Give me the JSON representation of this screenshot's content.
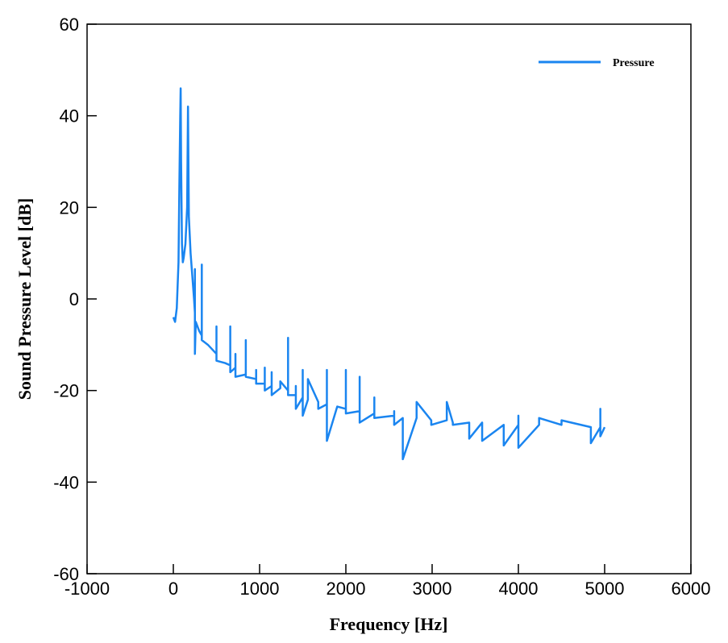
{
  "chart_data": {
    "type": "line",
    "xlabel": "Frequency [Hz]",
    "ylabel": "Sound Pressure Level [dB]",
    "xlim": [
      -1000,
      6000
    ],
    "ylim": [
      -60,
      60
    ],
    "xticks": [
      -1000,
      0,
      1000,
      2000,
      3000,
      4000,
      5000,
      6000
    ],
    "yticks": [
      -60,
      -40,
      -20,
      0,
      20,
      40,
      60
    ],
    "legend": "upper right",
    "x": [
      0,
      20,
      40,
      60,
      70,
      80,
      85,
      90,
      100,
      110,
      120,
      140,
      160,
      170,
      175,
      180,
      200,
      220,
      240,
      250,
      250,
      250,
      260,
      300,
      330,
      330,
      330,
      400,
      500,
      500,
      500,
      600,
      660,
      660,
      660,
      720,
      720,
      720,
      840,
      840,
      840,
      960,
      960,
      960,
      1060,
      1060,
      1060,
      1140,
      1140,
      1140,
      1240,
      1240,
      1330,
      1330,
      1330,
      1420,
      1420,
      1420,
      1500,
      1500,
      1500,
      1560,
      1560,
      1680,
      1680,
      1780,
      1780,
      1780,
      1900,
      2000,
      2000,
      2000,
      2160,
      2160,
      2160,
      2330,
      2330,
      2330,
      2560,
      2560,
      2560,
      2660,
      2660,
      2820,
      2820,
      2990,
      2990,
      3170,
      3170,
      3240,
      3240,
      3430,
      3430,
      3580,
      3580,
      3830,
      3830,
      4000,
      4000,
      4000,
      4240,
      4240,
      4500,
      4500,
      4840,
      4840,
      4950,
      4950,
      4950,
      5000
    ],
    "series": [
      {
        "name": "Pressure",
        "color": "#1a85f0",
        "values": [
          -4,
          -5,
          -2,
          8,
          25,
          40,
          46,
          30,
          12,
          8,
          9,
          12,
          20,
          42,
          30,
          18,
          10,
          5,
          0,
          -3,
          6.5,
          -12,
          -5,
          -7,
          -8,
          7.5,
          -9,
          -10,
          -12,
          -6,
          -13.5,
          -14,
          -14.5,
          -6,
          -16,
          -15,
          -12,
          -17,
          -16.5,
          -9,
          -17,
          -17.5,
          -15.5,
          -18.5,
          -18.5,
          -15,
          -20,
          -19,
          -16,
          -21,
          -19.5,
          -18,
          -20,
          -8.5,
          -21,
          -21,
          -19,
          -24,
          -21.5,
          -15.5,
          -25.5,
          -22,
          -17.5,
          -22.5,
          -24,
          -23,
          -15.5,
          -31,
          -23.5,
          -24,
          -15.5,
          -25,
          -24.5,
          -17,
          -27,
          -25,
          -21.5,
          -26,
          -25.5,
          -24.5,
          -27.5,
          -26,
          -35,
          -26,
          -22.5,
          -26.5,
          -27.5,
          -26.5,
          -22.5,
          -27,
          -27.5,
          -27,
          -30.5,
          -27,
          -31,
          -27.5,
          -32,
          -27.5,
          -25.5,
          -32.5,
          -27.5,
          -26,
          -27.5,
          -26.5,
          -28,
          -31.5,
          -28,
          -24,
          -30,
          -28
        ]
      }
    ]
  }
}
